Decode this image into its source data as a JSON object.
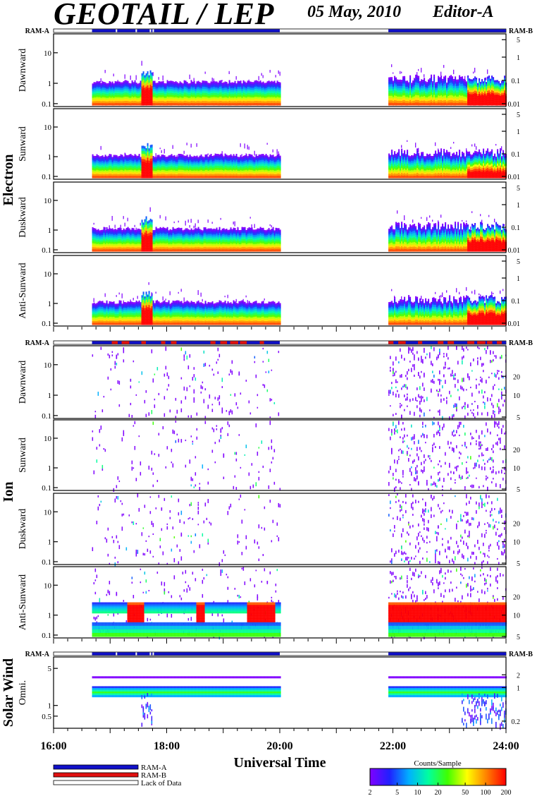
{
  "header": {
    "title": "GEOTAIL / LEP",
    "date": "05 May, 2010",
    "editor": "Editor-A"
  },
  "colors": {
    "ram_a": "#1010c8",
    "ram_b": "#e01010",
    "lack": "#ffffff"
  },
  "chart_data": {
    "type": "heatmap",
    "xlabel": "Universal Time",
    "x_ticks": [
      "16:00",
      "18:00",
      "20:00",
      "22:00",
      "24:00"
    ],
    "x_range_hours": [
      16,
      24
    ],
    "data_intervals_hours": [
      [
        16.68,
        20.0
      ],
      [
        21.92,
        24.0
      ]
    ],
    "groups": [
      {
        "name": "Electron",
        "ram_left": "RAM-A",
        "ram_right": "RAM-B",
        "panels": [
          {
            "name": "Dawnward",
            "left_ticks": [
              "10",
              "1",
              "0.1"
            ],
            "right_ticks": [
              "5",
              "1",
              "0.1",
              "0.01"
            ]
          },
          {
            "name": "Sunward",
            "left_ticks": [
              "10",
              "1",
              "0.1"
            ],
            "right_ticks": [
              "5",
              "1",
              "0.1",
              "0.01"
            ]
          },
          {
            "name": "Duskward",
            "left_ticks": [
              "10",
              "1",
              "0.1"
            ],
            "right_ticks": [
              "5",
              "1",
              "0.1",
              "0.01"
            ]
          },
          {
            "name": "Anti-Sunward",
            "left_ticks": [
              "10",
              "1",
              "0.1"
            ],
            "right_ticks": [
              "5",
              "1",
              "0.1",
              "0.01"
            ]
          }
        ]
      },
      {
        "name": "Ion",
        "ram_left": "RAM-A",
        "ram_right": "RAM-B",
        "panels": [
          {
            "name": "Dawnward",
            "left_ticks": [
              "10",
              "1",
              "0.1"
            ],
            "right_ticks": [
              "20",
              "10",
              "5"
            ]
          },
          {
            "name": "Sunward",
            "left_ticks": [
              "10",
              "1",
              "0.1"
            ],
            "right_ticks": [
              "20",
              "10",
              "5"
            ]
          },
          {
            "name": "Duskward",
            "left_ticks": [
              "10",
              "1",
              "0.1"
            ],
            "right_ticks": [
              "20",
              "10",
              "5"
            ]
          },
          {
            "name": "Anti-Sunward",
            "left_ticks": [
              "10",
              "1",
              "0.1"
            ],
            "right_ticks": [
              "20",
              "10",
              "5"
            ]
          }
        ]
      },
      {
        "name": "Solar Wind",
        "ram_left": "RAM-A",
        "ram_right": "RAM-B",
        "panels": [
          {
            "name": "Omni.",
            "left_ticks": [
              "5",
              "1",
              "0.5"
            ],
            "right_ticks": [
              "2",
              "1",
              "0.2"
            ]
          }
        ]
      }
    ],
    "legend": {
      "items": [
        "RAM-A",
        "RAM-B",
        "Lack of Data"
      ],
      "colorbar_title": "Counts/Sample",
      "colorbar_ticks": [
        "2",
        "5",
        "10",
        "20",
        "50",
        "100",
        "200"
      ]
    }
  }
}
